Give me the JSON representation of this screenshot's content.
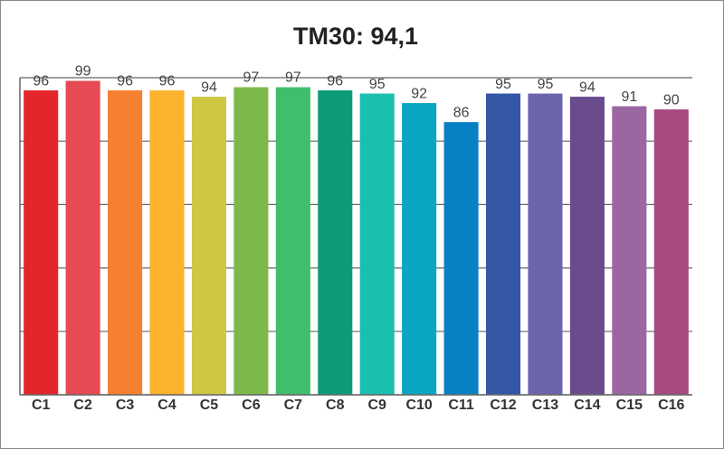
{
  "chart_data": {
    "type": "bar",
    "title": "TM30: 94,1",
    "categories": [
      "C1",
      "C2",
      "C3",
      "C4",
      "C5",
      "C6",
      "C7",
      "C8",
      "C9",
      "C10",
      "C11",
      "C12",
      "C13",
      "C14",
      "C15",
      "C16"
    ],
    "values": [
      96,
      99,
      96,
      96,
      94,
      97,
      97,
      96,
      95,
      92,
      86,
      95,
      95,
      94,
      91,
      90
    ],
    "colors": [
      "#e3262b",
      "#e64a52",
      "#f58030",
      "#fbb22c",
      "#cdc744",
      "#7cb84a",
      "#3fbf6b",
      "#0c9b79",
      "#1bbfb0",
      "#0aa6c3",
      "#0a80c4",
      "#3457a6",
      "#6b65ae",
      "#6a4b8c",
      "#9c66a3",
      "#a64a80"
    ],
    "ylim": [
      0,
      100
    ],
    "yticks": [
      0,
      20,
      40,
      60,
      80,
      100
    ],
    "grid": true
  }
}
